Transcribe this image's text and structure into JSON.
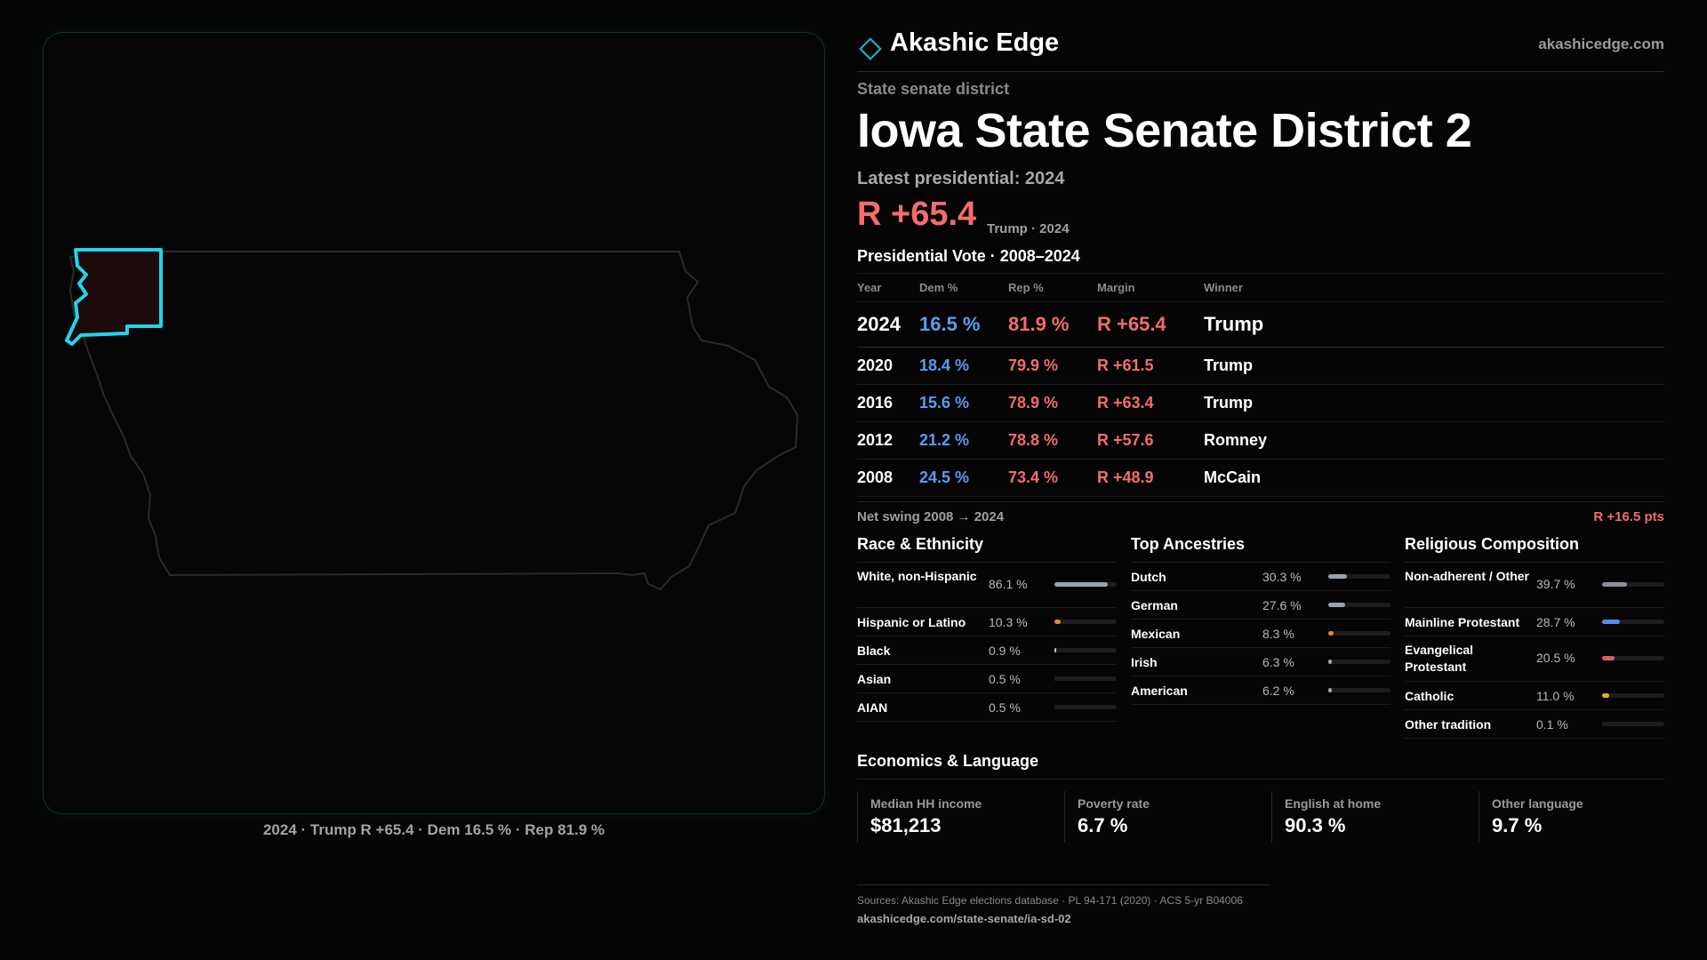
{
  "brand": {
    "name": "Akashic Edge",
    "url": "akashicedge.com",
    "logo_icon": "diamond-outline-icon",
    "accent": "#1fb6c7"
  },
  "header": {
    "kind": "State senate district",
    "title": "Iowa State Senate District 2",
    "latest": "Latest presidential: 2024",
    "margin": "R +65.4",
    "margin_sub": "Trump · 2024"
  },
  "vote_table": {
    "title": "Presidential Vote · 2008–2024",
    "headers": [
      "Year",
      "Dem %",
      "Rep %",
      "Margin",
      "Winner"
    ],
    "rows": [
      {
        "year": "2024",
        "dem": "16.5 %",
        "rep": "81.9 %",
        "margin": "R +65.4",
        "winner": "Trump"
      },
      {
        "year": "2020",
        "dem": "18.4 %",
        "rep": "79.9 %",
        "margin": "R +61.5",
        "winner": "Trump"
      },
      {
        "year": "2016",
        "dem": "15.6 %",
        "rep": "78.9 %",
        "margin": "R +63.4",
        "winner": "Trump"
      },
      {
        "year": "2012",
        "dem": "21.2 %",
        "rep": "78.8 %",
        "margin": "R +57.6",
        "winner": "Romney"
      },
      {
        "year": "2008",
        "dem": "24.5 %",
        "rep": "73.4 %",
        "margin": "R +48.9",
        "winner": "McCain"
      }
    ]
  },
  "swing": {
    "label": "Net swing 2008 → 2024",
    "value": "R +16.5 pts"
  },
  "colors": {
    "dem": "#5b9cf0",
    "rep": "#f26d6d",
    "white_bar": "#9aa3ad",
    "hispanic_bar": "#e08a2a",
    "black_bar": "#c8c8c8",
    "catholic_bar": "#e6b422",
    "mainline_bar": "#4f8fe6",
    "evangelical_bar": "#e25c5c"
  },
  "race": {
    "title": "Race & Ethnicity",
    "items": [
      {
        "label": "White, non-Hispanic",
        "value": "86.1 %",
        "pct": 86.1,
        "color": "#9aa3ad"
      },
      {
        "label": "Hispanic or Latino",
        "value": "10.3 %",
        "pct": 10.3,
        "color": "#e08a2a"
      },
      {
        "label": "Black",
        "value": "0.9 %",
        "pct": 0.9,
        "color": "#c8c8c8"
      },
      {
        "label": "Asian",
        "value": "0.5 %",
        "pct": 0.5,
        "color": "#1d1d1d"
      },
      {
        "label": "AIAN",
        "value": "0.5 %",
        "pct": 0.5,
        "color": "#1d1d1d"
      }
    ]
  },
  "ancestry": {
    "title": "Top Ancestries",
    "items": [
      {
        "label": "Dutch",
        "value": "30.3 %",
        "pct": 30.3,
        "color": "#9aa3ad"
      },
      {
        "label": "German",
        "value": "27.6 %",
        "pct": 27.6,
        "color": "#9aa3ad"
      },
      {
        "label": "Mexican",
        "value": "8.3 %",
        "pct": 8.3,
        "color": "#e08a2a"
      },
      {
        "label": "Irish",
        "value": "6.3 %",
        "pct": 6.3,
        "color": "#9aa3ad"
      },
      {
        "label": "American",
        "value": "6.2 %",
        "pct": 6.2,
        "color": "#9aa3ad"
      }
    ]
  },
  "religion": {
    "title": "Religious Composition",
    "items": [
      {
        "label": "Non-adherent / Other",
        "value": "39.7 %",
        "pct": 39.7,
        "color": "#8a9099"
      },
      {
        "label": "Mainline Protestant",
        "value": "28.7 %",
        "pct": 28.7,
        "color": "#4f8fe6"
      },
      {
        "label": "Evangelical Protestant",
        "value": "20.5 %",
        "pct": 20.5,
        "color": "#e25c5c"
      },
      {
        "label": "Catholic",
        "value": "11.0 %",
        "pct": 11.0,
        "color": "#e6b422"
      },
      {
        "label": "Other tradition",
        "value": "0.1 %",
        "pct": 0.1,
        "color": "#1d1d1d"
      }
    ]
  },
  "economics": {
    "title": "Economics & Language",
    "items": [
      {
        "label": "Median HH income",
        "value": "$81,213"
      },
      {
        "label": "Poverty rate",
        "value": "6.7 %"
      },
      {
        "label": "English at home",
        "value": "90.3 %"
      },
      {
        "label": "Other language",
        "value": "9.7 %"
      }
    ]
  },
  "map": {
    "caption": "2024 · Trump R +65.4 · Dem 16.5 % · Rep 81.9 %",
    "highlight_color": "#21d4ea",
    "district_fill": "#1c0b0b"
  },
  "footer": {
    "sources": "Sources: Akashic Edge elections database · PL 94-171 (2020) · ACS 5-yr B04006",
    "url": "akashicedge.com/state-senate/ia-sd-02"
  }
}
